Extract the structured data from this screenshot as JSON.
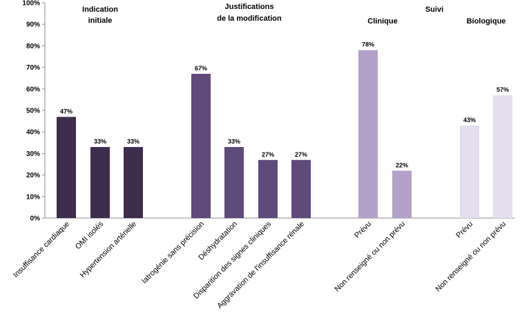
{
  "chart_data": {
    "type": "bar",
    "ylim": [
      0,
      100
    ],
    "yticks": [
      "0%",
      "10%",
      "20%",
      "30%",
      "40%",
      "50%",
      "60%",
      "70%",
      "80%",
      "90%",
      "100%"
    ],
    "group_titles": [
      {
        "lines": [
          "Indication",
          "initiale"
        ]
      },
      {
        "lines": [
          "Justifications",
          "de la modification"
        ]
      },
      {
        "lines": [
          "Suivi"
        ]
      },
      {
        "lines": [
          "Clinique"
        ]
      },
      {
        "lines": [
          "Biologique"
        ]
      }
    ],
    "colors": {
      "indication": "#3f2d4e",
      "justification": "#5f4a7c",
      "suivi_clinique": "#b3a1c8",
      "suivi_biologique": "#e4dfee"
    },
    "categories": [
      "Insuffisance cardiaque",
      "OMI isolés",
      "Hypertension artérielle",
      "Iatrogénie sans précision",
      "Déshydratation",
      "Disparition des signes cliniques",
      "Aggravation de l'insuffisance rénale",
      "Prévu",
      "Non renseigné ou non prévu",
      "Prévu",
      "Non renseigné ou non prévu"
    ],
    "values": [
      47,
      33,
      33,
      67,
      33,
      27,
      27,
      78,
      22,
      43,
      57
    ],
    "value_labels": [
      "47%",
      "33%",
      "33%",
      "67%",
      "33%",
      "27%",
      "27%",
      "78%",
      "22%",
      "43%",
      "57%"
    ],
    "groups": [
      "indication",
      "indication",
      "indication",
      "justification",
      "justification",
      "justification",
      "justification",
      "suivi_clinique",
      "suivi_clinique",
      "suivi_biologique",
      "suivi_biologique"
    ]
  }
}
